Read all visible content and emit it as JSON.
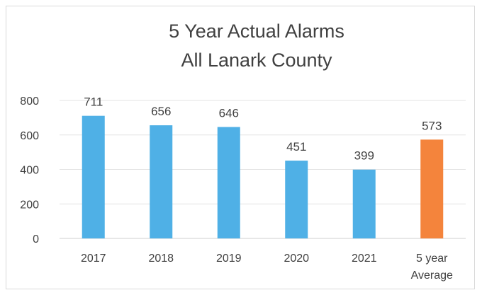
{
  "chart_data": {
    "type": "bar",
    "title_lines": [
      "5 Year Actual Alarms",
      "All Lanark County"
    ],
    "categories": [
      [
        "2017"
      ],
      [
        "2018"
      ],
      [
        "2019"
      ],
      [
        "2020"
      ],
      [
        "2021"
      ],
      [
        "5 year",
        "Average"
      ]
    ],
    "values": [
      711,
      656,
      646,
      451,
      399,
      573
    ],
    "data_labels": [
      "711",
      "656",
      "646",
      "451",
      "399",
      "573"
    ],
    "bar_colors": [
      "#4fb0e6",
      "#4fb0e6",
      "#4fb0e6",
      "#4fb0e6",
      "#4fb0e6",
      "#f4843c"
    ],
    "xlabel": "",
    "ylabel": "",
    "ylim": [
      0,
      800
    ],
    "yticks": [
      0,
      200,
      400,
      600,
      800
    ],
    "ytick_labels": [
      "0",
      "200",
      "400",
      "600",
      "800"
    ],
    "grid": true,
    "legend": "none"
  }
}
